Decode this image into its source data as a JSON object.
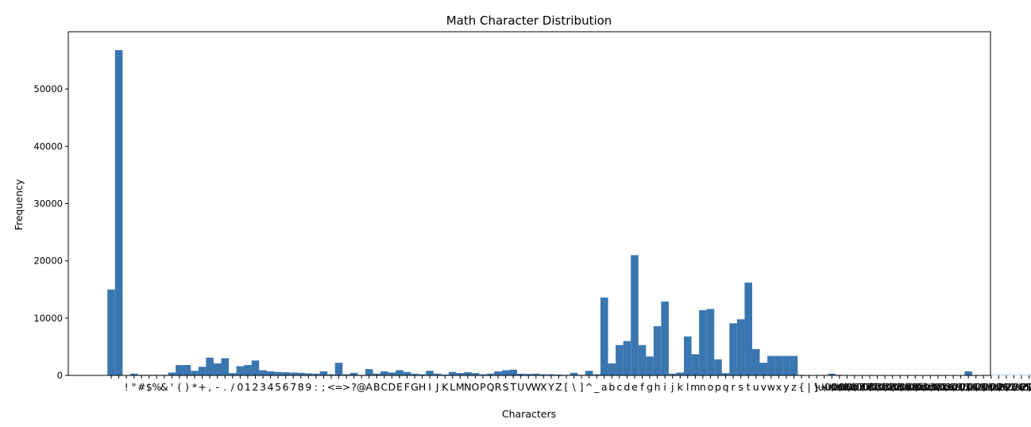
{
  "chart_data": {
    "type": "bar",
    "title": "Math Character Distribution",
    "xlabel": "Characters",
    "ylabel": "Frequency",
    "ylim": [
      0,
      60000
    ],
    "yticks": [
      0,
      10000,
      20000,
      30000,
      40000,
      50000
    ],
    "grid": false,
    "bar_color": "#3a76b0",
    "categories": [
      "\n",
      " ",
      "!",
      "\"",
      "#",
      "$",
      "%",
      "&",
      "'",
      "(",
      ")",
      "*",
      "+",
      ",",
      "-",
      ".",
      "/",
      "0",
      "1",
      "2",
      "3",
      "4",
      "5",
      "6",
      "7",
      "8",
      "9",
      ":",
      ";",
      "<",
      "=",
      ">",
      "?",
      "@",
      "A",
      "B",
      "C",
      "D",
      "E",
      "F",
      "G",
      "H",
      "I",
      "J",
      "K",
      "L",
      "M",
      "N",
      "O",
      "P",
      "Q",
      "R",
      "S",
      "T",
      "U",
      "V",
      "W",
      "X",
      "Y",
      "Z",
      "[",
      "\\",
      "]",
      "^",
      "_",
      "a",
      "b",
      "c",
      "d",
      "e",
      "f",
      "g",
      "h",
      "i",
      "j",
      "k",
      "l",
      "m",
      "n",
      "o",
      "p",
      "q",
      "r",
      "s",
      "t",
      "u",
      "v",
      "w",
      "x",
      "y",
      "z",
      "{",
      "|",
      "}",
      "~",
      " ",
      "°",
      "·",
      "×",
      "÷",
      "α",
      "β",
      "γ",
      "δ",
      "θ",
      "λ",
      "μ",
      "π",
      "σ",
      "φ",
      "ω",
      "–",
      "—",
      "’",
      "“",
      "”",
      "…",
      "−",
      "≤",
      "≥",
      "√",
      "∞",
      "≈",
      "²",
      "³",
      "€",
      "é"
    ],
    "tick_labels": [
      "",
      " ",
      "!",
      "\"",
      "#",
      "$",
      "%",
      "&",
      "'",
      "(",
      ")",
      "*",
      "+",
      ",",
      "-",
      ".",
      "/",
      "0",
      "1",
      "2",
      "3",
      "4",
      "5",
      "6",
      "7",
      "8",
      "9",
      ":",
      ";",
      "<",
      "=",
      ">",
      "?",
      "@",
      "A",
      "B",
      "C",
      "D",
      "E",
      "F",
      "G",
      "H",
      "I",
      "J",
      "K",
      "L",
      "M",
      "N",
      "O",
      "P",
      "Q",
      "R",
      "S",
      "T",
      "U",
      "V",
      "W",
      "X",
      "Y",
      "Z",
      "[",
      "\\",
      "]",
      "^",
      "_",
      "a",
      "b",
      "c",
      "d",
      "e",
      "f",
      "g",
      "h",
      "i",
      "j",
      "k",
      "l",
      "m",
      "n",
      "o",
      "p",
      "q",
      "r",
      "s",
      "t",
      "u",
      "v",
      "w",
      "x",
      "y",
      "z",
      "{",
      "|",
      "}",
      "~",
      "\\u00a0",
      "\\u00b0",
      "\\u00b7",
      "\\u00d7",
      "\\u00f7",
      "\\u03b1",
      "\\u03b2",
      "\\u03b3",
      "\\u03b4",
      "\\u03b8",
      "\\u03bb",
      "\\u03bc",
      "\\u03c0",
      "\\u03c3",
      "\\u03c6",
      "\\u03c9",
      "\\u2013",
      "\\u2014",
      "\\u2019",
      "\\u201c",
      "\\u201d",
      "\\u2026",
      "\\u2212",
      "\\u2264",
      "\\u2265",
      "\\u221a",
      "\\u221e",
      "\\u2248",
      "\\u00b2",
      "\\u00b3",
      "\\u20ac",
      "\\u00e9"
    ],
    "values": [
      15000,
      56800,
      0,
      300,
      100,
      100,
      100,
      100,
      500,
      1800,
      1800,
      800,
      1500,
      3100,
      2100,
      3000,
      400,
      1600,
      1800,
      2600,
      900,
      700,
      600,
      550,
      500,
      450,
      350,
      300,
      700,
      200,
      2200,
      200,
      450,
      100,
      1100,
      300,
      700,
      500,
      900,
      600,
      300,
      200,
      800,
      300,
      150,
      600,
      400,
      550,
      400,
      200,
      300,
      700,
      900,
      1000,
      300,
      250,
      300,
      200,
      200,
      150,
      100,
      450,
      100,
      800,
      200,
      13600,
      2100,
      5300,
      6000,
      21000,
      5300,
      3300,
      8600,
      12900,
      300,
      500,
      6800,
      3700,
      11400,
      11600,
      2800,
      400,
      9100,
      9800,
      16200,
      4600,
      2200,
      3400,
      3400,
      3400,
      3400,
      100,
      0,
      50,
      0,
      300,
      100,
      50,
      50,
      50,
      50,
      50,
      50,
      50,
      50,
      50,
      50,
      50,
      50,
      50,
      50,
      50,
      50,
      700,
      50,
      50,
      50,
      50,
      50,
      50,
      50,
      50,
      50,
      50,
      50,
      50,
      50
    ]
  }
}
